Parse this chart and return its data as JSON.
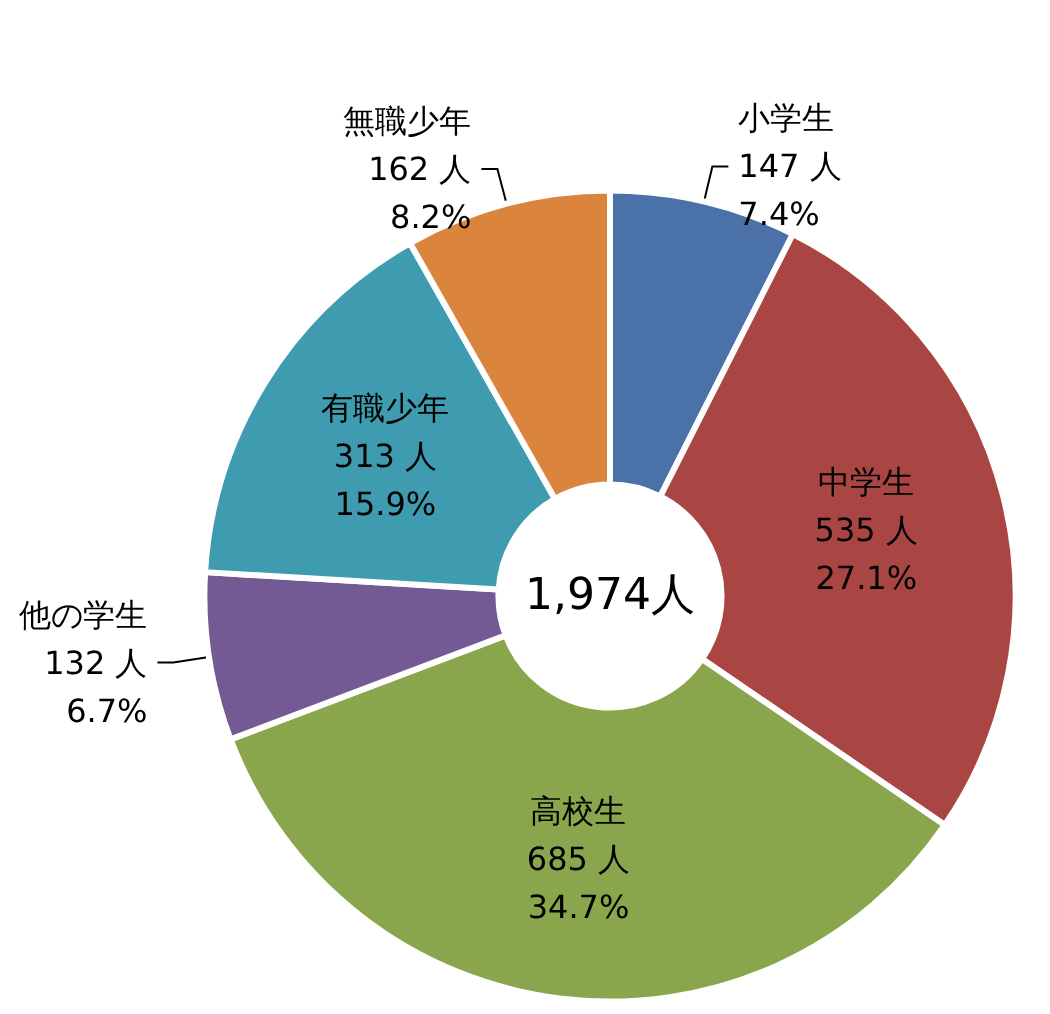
{
  "chart_data": {
    "type": "donut",
    "categories": [
      "小学生",
      "中学生",
      "高校生",
      "他の学生",
      "有職少年",
      "無職少年"
    ],
    "values": [
      147,
      535,
      685,
      132,
      313,
      162
    ],
    "colors": [
      "#4a72a8",
      "#a94644",
      "#8aa64c",
      "#735a94",
      "#3f9bb0",
      "#db843d"
    ],
    "value_labels": [
      "147 人\n7.4%",
      "535 人\n27.1%",
      "685 人\n34.7%",
      "132 人\n6.7%",
      "313 人\n15.9%",
      "162 人\n8.2%"
    ],
    "annotations": [
      "1,974人"
    ],
    "legend": false
  }
}
